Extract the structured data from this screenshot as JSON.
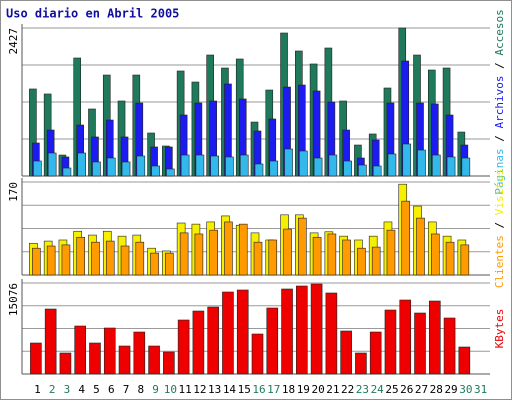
{
  "title": "Uso diario en Abril 2005",
  "legend_separator": " / ",
  "chart_data": [
    {
      "type": "bar",
      "ylim": [
        0,
        2427
      ],
      "yticks": [
        2427
      ],
      "series": [
        {
          "name": "Páginas",
          "color": "#33b8ec",
          "values": [
            246,
            377,
            131,
            377,
            230,
            295,
            230,
            328,
            164,
            115,
            344,
            344,
            328,
            312,
            344,
            197,
            246,
            443,
            410,
            295,
            344,
            246,
            180,
            164,
            361,
            525,
            426,
            344,
            312,
            295,
            0
          ]
        },
        {
          "name": "Archivos",
          "color": "#1c1cf0",
          "values": [
            541,
            754,
            312,
            836,
            640,
            918,
            640,
            1197,
            476,
            476,
            1000,
            1197,
            1230,
            1509,
            1263,
            738,
            935,
            1459,
            1492,
            1394,
            1213,
            754,
            295,
            590,
            1197,
            1886,
            1197,
            1181,
            1000,
            508,
            0
          ]
        },
        {
          "name": "Accesos",
          "color": "#1f7a5c",
          "values": [
            1427,
            1345,
            344,
            1935,
            1099,
            1656,
            1230,
            1656,
            705,
            492,
            1722,
            1541,
            1984,
            1771,
            1919,
            885,
            1410,
            2345,
            2050,
            1837,
            2099,
            1230,
            508,
            689,
            1443,
            2427,
            1984,
            1738,
            1771,
            721,
            0
          ]
        }
      ]
    },
    {
      "type": "bar",
      "ylim": [
        0,
        170
      ],
      "yticks": [
        170
      ],
      "series": [
        {
          "name": "Clientes",
          "color": "#ff9a00",
          "values": [
            49,
            53,
            55,
            69,
            60,
            62,
            53,
            60,
            40,
            40,
            77,
            75,
            82,
            97,
            93,
            60,
            64,
            84,
            104,
            69,
            75,
            64,
            49,
            51,
            82,
            135,
            104,
            75,
            60,
            55,
            0
          ]
        },
        {
          "name": "Visitas",
          "color": "#f6f000",
          "values": [
            58,
            62,
            64,
            80,
            73,
            80,
            71,
            73,
            49,
            44,
            95,
            93,
            97,
            108,
            91,
            77,
            64,
            110,
            110,
            77,
            79,
            71,
            64,
            71,
            97,
            166,
            126,
            97,
            71,
            64,
            0
          ]
        }
      ]
    },
    {
      "type": "bar",
      "ylim": [
        0,
        15076
      ],
      "yticks": [
        15076
      ],
      "categories": [
        "1",
        "2",
        "3",
        "4",
        "5",
        "6",
        "7",
        "8",
        "9",
        "10",
        "11",
        "12",
        "13",
        "14",
        "15",
        "16",
        "17",
        "18",
        "19",
        "20",
        "21",
        "22",
        "23",
        "24",
        "25",
        "26",
        "27",
        "28",
        "29",
        "30",
        "31"
      ],
      "category_colors": [
        "#000000",
        "#1f7a5c",
        "#1f7a5c",
        "#000000",
        "#000000",
        "#000000",
        "#000000",
        "#000000",
        "#1f7a5c",
        "#1f7a5c",
        "#000000",
        "#000000",
        "#000000",
        "#000000",
        "#000000",
        "#1f7a5c",
        "#1f7a5c",
        "#000000",
        "#000000",
        "#000000",
        "#000000",
        "#000000",
        "#1f7a5c",
        "#1f7a5c",
        "#000000",
        "#000000",
        "#000000",
        "#000000",
        "#000000",
        "#1f7a5c",
        "#1f7a5c"
      ],
      "series": [
        {
          "name": "KBytes",
          "color": "#ee0000",
          "values": [
            5134,
            10767,
            3479,
            7952,
            5134,
            7620,
            4638,
            6957,
            4638,
            3645,
            8946,
            10436,
            11098,
            13585,
            13917,
            6626,
            10933,
            14082,
            14579,
            14910,
            13419,
            7123,
            3479,
            6957,
            10602,
            12258,
            10105,
            12092,
            9277,
            4472,
            0
          ]
        }
      ]
    }
  ]
}
